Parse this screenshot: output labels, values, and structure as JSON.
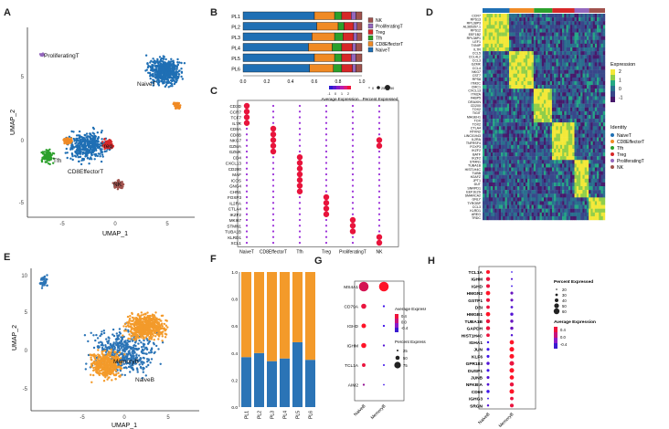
{
  "panels": {
    "A": "A",
    "B": "B",
    "C": "C",
    "D": "D",
    "E": "E",
    "F": "F",
    "G": "G",
    "H": "H"
  },
  "colors": {
    "NaiveT": "#1f6fb4",
    "CD8EffectorT": "#f08a24",
    "Tfh": "#2ca02c",
    "Treg": "#d62728",
    "ProliferatingT": "#9467bd",
    "NK": "#a0524d",
    "MemoryB": "#f39a2a",
    "NaiveB": "#2b74b6"
  },
  "panelA": {
    "xlabel": "UMAP_1",
    "ylabel": "UMAP_2",
    "xticks": [
      "-5",
      "0",
      "5"
    ],
    "yticks": [
      "5",
      "0",
      "-5"
    ],
    "labels": {
      "naive": "NaiveT",
      "prolif": "ProliferatingT",
      "treg": "Treg",
      "tfh": "Tfh",
      "cd8": "CD8EffectorT",
      "nk": "NK"
    }
  },
  "chart_data": [
    {
      "type": "bar",
      "panel": "B",
      "orientation": "horizontal",
      "stacked": true,
      "categories": [
        "PL1",
        "PL2",
        "PL3",
        "PL4",
        "PL5",
        "PL6"
      ],
      "xticks": [
        "0.0",
        "0.2",
        "0.4",
        "0.6",
        "0.8",
        "1.0"
      ],
      "series": [
        {
          "name": "NaiveT",
          "values": [
            0.6,
            0.62,
            0.58,
            0.55,
            0.6,
            0.56
          ]
        },
        {
          "name": "CD8EffectorT",
          "values": [
            0.17,
            0.18,
            0.19,
            0.2,
            0.17,
            0.2
          ]
        },
        {
          "name": "Tfh",
          "values": [
            0.06,
            0.05,
            0.07,
            0.08,
            0.06,
            0.07
          ]
        },
        {
          "name": "Treg",
          "values": [
            0.08,
            0.08,
            0.09,
            0.09,
            0.08,
            0.09
          ]
        },
        {
          "name": "ProliferatingT",
          "values": [
            0.04,
            0.03,
            0.03,
            0.03,
            0.04,
            0.03
          ]
        },
        {
          "name": "NK",
          "values": [
            0.05,
            0.04,
            0.04,
            0.05,
            0.05,
            0.05
          ]
        }
      ],
      "legend": [
        "NK",
        "ProliferatingT",
        "Treg",
        "Tfh",
        "CD8EffectorT",
        "NaiveT"
      ]
    },
    {
      "type": "scatter",
      "panel": "C",
      "subtype": "dotplot",
      "genes": [
        "CD3D",
        "CCR7",
        "TCF7",
        "IL7R",
        "CD8A",
        "CD8B",
        "NKG7",
        "GZMA",
        "GZMK",
        "CD4",
        "CXCL13",
        "CD200",
        "MAF",
        "ICOS",
        "GNG4",
        "CHN1",
        "FOXP3",
        "IL2RA",
        "CTLA4",
        "IKZF2",
        "MKI67",
        "STMN1",
        "TUBA1B",
        "KLRD1",
        "XCL1"
      ],
      "groups": [
        "NaiveT",
        "CD8EffectorT",
        "Tfh",
        "Treg",
        "ProliferatingT",
        "NK"
      ],
      "legend_title_color": "Average Expression",
      "legend_title_size": "Percent Expressed",
      "size_ticks": [
        "0",
        "25",
        "50"
      ],
      "color_ticks": [
        "-1",
        "0",
        "1",
        "2"
      ],
      "high": [
        [
          0,
          1,
          2,
          3
        ],
        [
          4,
          5,
          6,
          7,
          8
        ],
        [
          9,
          10,
          11,
          12,
          13,
          14,
          15
        ],
        [
          16,
          17,
          18,
          19
        ],
        [
          20,
          21,
          22
        ],
        [
          6,
          7,
          23,
          24
        ]
      ]
    },
    {
      "type": "heatmap",
      "panel": "D",
      "genes": [
        "CCR7",
        "RPS13",
        "RPL38P3",
        "AL365357.1",
        "RPS12",
        "EEF1B2",
        "RPL38P1",
        "LEF1",
        "TXNIP",
        "IL7R",
        "CCL5",
        "CCL4L2",
        "CCL3",
        "GZMK",
        "CCL4",
        "NKG7",
        "CST7",
        "RPS8",
        "ITM2C",
        "CMC1",
        "CXCL13",
        "ITM2A",
        "FABP5",
        "DRAXIN",
        "CD200",
        "TOX2",
        "TIGIT",
        "MAGEH1",
        "TOX",
        "TOX2",
        "CTLA4",
        "RTKN2",
        "LINC01943",
        "IL2RA",
        "TNFRSF4",
        "FOXP3",
        "IKZF2",
        "BATF",
        "IKZF2",
        "STMN1",
        "TUBA1B",
        "HIST1H4C",
        "TUBB",
        "H2AFZ",
        "JPT1",
        "DUT",
        "SNRPD1",
        "EEF1E2S",
        "SMARCA2",
        "GNLY",
        "TYROBP",
        "CCL3",
        "KLRD1",
        "AREG",
        "TRDC"
      ],
      "groups": [
        "NaiveT",
        "CD8EffectorT",
        "Tfh",
        "Treg",
        "ProliferatingT",
        "NK"
      ],
      "color_range": [
        -1,
        2
      ],
      "color_ticks": [
        "2",
        "1",
        "0",
        "-1"
      ],
      "legend_title": "Expression",
      "identity_title": "Identity"
    },
    {
      "type": "bar",
      "panel": "F",
      "stacked": true,
      "categories": [
        "PL1",
        "PL2",
        "PL3",
        "PL4",
        "PL5",
        "PL6"
      ],
      "yticks": [
        "0.0",
        "0.2",
        "0.4",
        "0.6",
        "0.8",
        "1.0"
      ],
      "series": [
        {
          "name": "NaiveB",
          "values": [
            0.37,
            0.4,
            0.34,
            0.36,
            0.48,
            0.35
          ]
        },
        {
          "name": "MemoryB",
          "values": [
            0.63,
            0.6,
            0.66,
            0.64,
            0.52,
            0.65
          ]
        }
      ],
      "legend": [
        "MemoryB",
        "NaiveB"
      ]
    },
    {
      "type": "scatter",
      "panel": "G",
      "subtype": "dotplot",
      "genes": [
        "MS4A1",
        "CD79A",
        "IGHD",
        "IGHM",
        "TCL1A",
        "AIM2"
      ],
      "groups": [
        "NaiveB",
        "MemoryB"
      ],
      "avg": [
        [
          0.3,
          0.5
        ],
        [
          0.4,
          -0.4
        ],
        [
          0.5,
          -0.4
        ],
        [
          0.5,
          -0.3
        ],
        [
          0.4,
          -0.4
        ],
        [
          0.0,
          -0.4
        ]
      ],
      "pct": [
        [
          85,
          85
        ],
        [
          40,
          10
        ],
        [
          35,
          10
        ],
        [
          40,
          10
        ],
        [
          25,
          8
        ],
        [
          10,
          5
        ]
      ],
      "legend_title_color": "Average Expression",
      "color_ticks": [
        "0.4",
        "0.0",
        "-0.4"
      ],
      "legend_title_size": "Percent Expressed",
      "size_ticks": [
        "25",
        "50",
        "75"
      ]
    },
    {
      "type": "scatter",
      "panel": "H",
      "subtype": "dotplot",
      "genes": [
        "TCL1A",
        "IGHM",
        "IGHD",
        "HMGN2",
        "GSTP1",
        "DBI",
        "HMGB1",
        "TUBA1B",
        "GAPDH",
        "HIST1H4C",
        "IGHA1",
        "JUN",
        "KLF6",
        "GPR183",
        "DUSP1",
        "JUNB",
        "NFKBIA",
        "CD69",
        "IGHG3",
        "SRGN"
      ],
      "groups": [
        "NaiveB",
        "MemoryB"
      ],
      "avg": [
        [
          0.5,
          -0.4
        ],
        [
          0.4,
          -0.3
        ],
        [
          0.4,
          -0.4
        ],
        [
          0.5,
          -0.2
        ],
        [
          0.4,
          -0.2
        ],
        [
          0.4,
          -0.3
        ],
        [
          0.5,
          -0.3
        ],
        [
          0.4,
          -0.2
        ],
        [
          0.4,
          -0.2
        ],
        [
          0.4,
          -0.3
        ],
        [
          -0.4,
          0.5
        ],
        [
          -0.4,
          0.5
        ],
        [
          -0.4,
          0.5
        ],
        [
          -0.3,
          0.4
        ],
        [
          -0.4,
          0.5
        ],
        [
          -0.3,
          0.5
        ],
        [
          -0.3,
          0.4
        ],
        [
          -0.4,
          0.5
        ],
        [
          -0.4,
          0.4
        ],
        [
          -0.3,
          0.4
        ]
      ],
      "pct": [
        [
          45,
          8
        ],
        [
          50,
          15
        ],
        [
          45,
          10
        ],
        [
          55,
          30
        ],
        [
          45,
          30
        ],
        [
          40,
          25
        ],
        [
          55,
          35
        ],
        [
          50,
          35
        ],
        [
          50,
          35
        ],
        [
          40,
          20
        ],
        [
          20,
          55
        ],
        [
          30,
          60
        ],
        [
          30,
          60
        ],
        [
          35,
          60
        ],
        [
          30,
          60
        ],
        [
          30,
          55
        ],
        [
          25,
          50
        ],
        [
          35,
          60
        ],
        [
          10,
          40
        ],
        [
          20,
          45
        ]
      ],
      "legend_title_size": "Percent Expressed",
      "size_ticks": [
        "20",
        "30",
        "40",
        "50",
        "60"
      ],
      "legend_title_color": "Average Expression",
      "color_ticks": [
        "0.4",
        "0.0",
        "-0.4"
      ]
    }
  ],
  "panelE": {
    "xlabel": "UMAP_1",
    "ylabel": "UMAP_2",
    "xticks": [
      "-5",
      "0",
      "5"
    ],
    "yticks": [
      "10",
      "5",
      "0",
      "-5"
    ],
    "labels": {
      "memory": "MemoryB",
      "naive": "NaiveB"
    }
  }
}
